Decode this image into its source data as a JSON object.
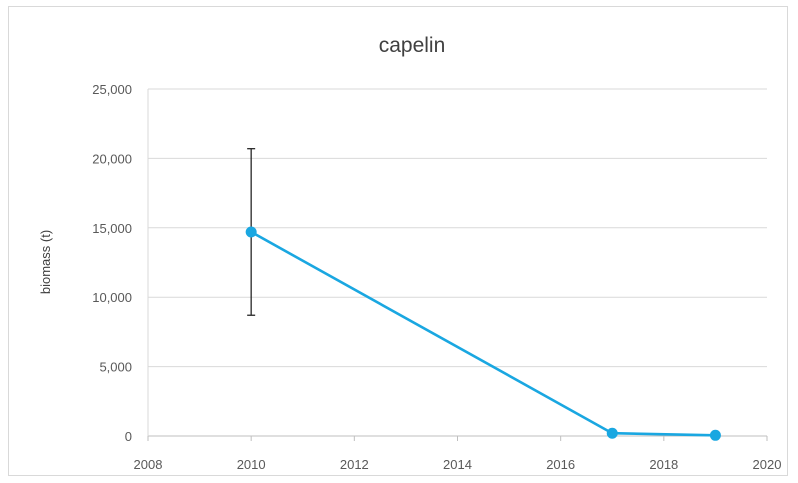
{
  "chart_data": {
    "type": "scatter",
    "title": "capelin",
    "xlabel": "",
    "ylabel": "biomass (t)",
    "xlim": [
      2008,
      2020
    ],
    "ylim": [
      0,
      25000
    ],
    "x_ticks": [
      2008,
      2010,
      2012,
      2014,
      2016,
      2018,
      2020
    ],
    "y_ticks": [
      0,
      5000,
      10000,
      15000,
      20000,
      25000
    ],
    "x_tick_labels": [
      "2008",
      "2010",
      "2012",
      "2014",
      "2016",
      "2018",
      "2020"
    ],
    "y_tick_labels": [
      "0",
      "5,000",
      "10,000",
      "15,000",
      "20,000",
      "25,000"
    ],
    "grid": "horizontal",
    "legend": "none",
    "series": [
      {
        "color": "#1aa7e1",
        "points": [
          {
            "x": 2010,
            "y": 14700,
            "err_low": 8700,
            "err_high": 20700
          },
          {
            "x": 2017,
            "y": 200
          },
          {
            "x": 2019,
            "y": 50
          }
        ]
      }
    ],
    "error_bar_color": "#262626"
  }
}
